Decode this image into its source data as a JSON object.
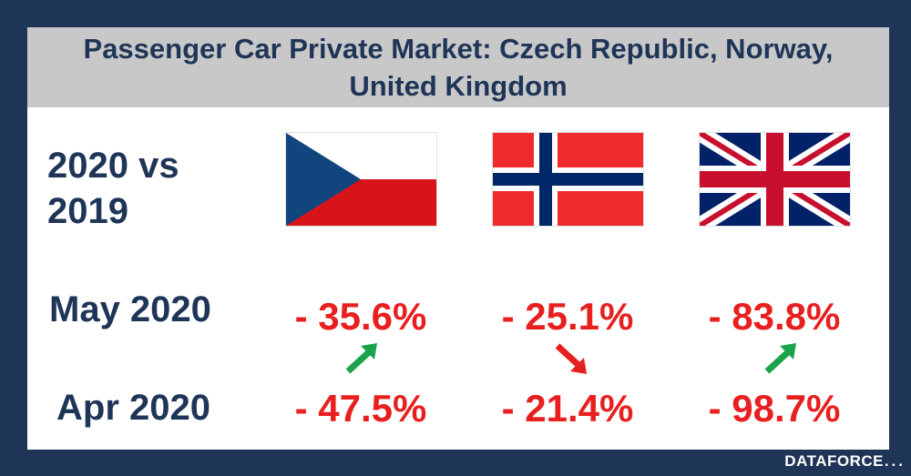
{
  "title": "Passenger Car Private Market: Czech Republic, Norway, United Kingdom",
  "comparison_label": "2020 vs 2019",
  "brand": "DATAFORCE",
  "brand_dots": "...",
  "colors": {
    "background": "#1f3557",
    "title_bar": "#c8c8c8",
    "text": "#1f3557",
    "values": "#e81f1f",
    "arrow_up": "#1aa34a",
    "arrow_down": "#e81f1f"
  },
  "chart_data": {
    "type": "table",
    "title": "Passenger Car Private Market: Czech Republic, Norway, United Kingdom",
    "subtitle": "2020 vs 2019",
    "columns": [
      {
        "country": "Czech Republic",
        "flag": "cz-flag",
        "may_label": "- 35.6%",
        "apr_label": "- 47.5%",
        "may": -35.6,
        "apr": -47.5,
        "trend": "up"
      },
      {
        "country": "Norway",
        "flag": "no-flag",
        "may_label": "- 25.1%",
        "apr_label": "- 21.4%",
        "may": -25.1,
        "apr": -21.4,
        "trend": "down"
      },
      {
        "country": "United Kingdom",
        "flag": "uk-flag",
        "may_label": "- 83.8%",
        "apr_label": "- 98.7%",
        "may": -83.8,
        "apr": -98.7,
        "trend": "up"
      }
    ],
    "rows": [
      {
        "label": "May 2020"
      },
      {
        "label": "Apr 2020"
      }
    ]
  }
}
